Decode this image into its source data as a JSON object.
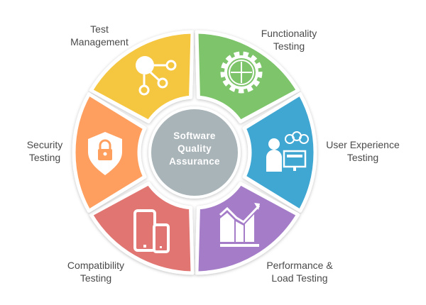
{
  "center": {
    "lines": [
      "Software",
      "Quality",
      "Assurance"
    ],
    "color": "#A9B4B9"
  },
  "segments": [
    {
      "id": "test-management",
      "lines": [
        "Test",
        "Management"
      ],
      "color": "#F5C63F",
      "icon": "network-nodes-icon"
    },
    {
      "id": "functionality-testing",
      "lines": [
        "Functionality",
        "Testing"
      ],
      "color": "#7DC46B",
      "icon": "gear-puzzle-icon"
    },
    {
      "id": "user-experience-testing",
      "lines": [
        "User Experience",
        "Testing"
      ],
      "color": "#3FA6D2",
      "icon": "user-computer-icon"
    },
    {
      "id": "performance-load-testing",
      "lines": [
        "Performance &",
        "Load Testing"
      ],
      "color": "#A47CC8",
      "icon": "growth-chart-icon"
    },
    {
      "id": "compatibility-testing",
      "lines": [
        "Compatibility",
        "Testing"
      ],
      "color": "#E07472",
      "icon": "tablet-phone-icon"
    },
    {
      "id": "security-testing",
      "lines": [
        "Security",
        "Testing"
      ],
      "color": "#FF9F5E",
      "icon": "shield-lock-icon"
    }
  ]
}
